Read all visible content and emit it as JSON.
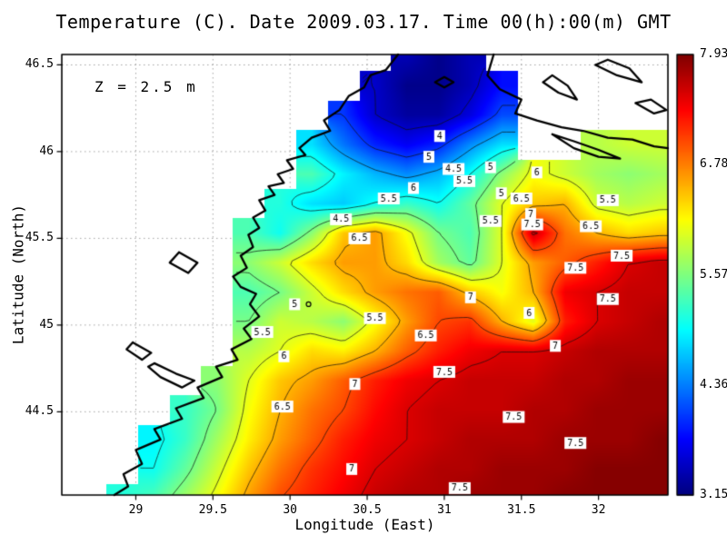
{
  "title": "Temperature (C). Date 2009.03.17. Time 00(h):00(m) GMT",
  "annotation": "Z = 2.5 m",
  "axes": {
    "x_label": "Longitude (East)",
    "y_label": "Latitude (North)",
    "x_ticks": [
      "29",
      "29.5",
      "30",
      "30.5",
      "31",
      "31.5",
      "32"
    ],
    "y_ticks": [
      "44.5",
      "45",
      "45.5",
      "46",
      "46.5"
    ],
    "xlim": [
      28.52,
      32.45
    ],
    "ylim": [
      44.02,
      46.56
    ]
  },
  "colorbar": {
    "min": 3.15,
    "max": 7.93,
    "tick_labels": [
      "7.93",
      "6.78",
      "5.57",
      "4.36",
      "3.15"
    ],
    "colormap": "jet",
    "top_color": "#800000",
    "bottom_color": "#000080"
  },
  "chart_data": {
    "type": "heatmap",
    "title": "Temperature (C). Date 2009.03.17. Time 00(h):00(m) GMT",
    "units": "C",
    "depth_annotation": "Z = 2.5 m",
    "xlabel": "Longitude (East)",
    "ylabel": "Latitude (North)",
    "grid": {
      "lon_min": 28.5,
      "lon_max": 32.4,
      "lat_min": 44.0,
      "lat_max": 46.55,
      "ncols": 20,
      "nrows": 16,
      "values_north_to_south": [
        [
          null,
          null,
          null,
          null,
          null,
          null,
          null,
          null,
          null,
          null,
          null,
          3.4,
          3.2,
          3.4,
          null,
          null,
          null,
          null,
          null,
          null
        ],
        [
          null,
          null,
          null,
          null,
          null,
          null,
          null,
          null,
          null,
          null,
          3.5,
          3.2,
          3.2,
          3.4,
          3.8,
          null,
          null,
          null,
          null,
          null
        ],
        [
          null,
          null,
          null,
          null,
          null,
          null,
          null,
          null,
          null,
          4.0,
          3.5,
          3.3,
          3.3,
          3.6,
          4.1,
          null,
          null,
          null,
          null,
          null
        ],
        [
          null,
          null,
          null,
          null,
          null,
          null,
          null,
          null,
          4.8,
          4.3,
          3.9,
          3.7,
          3.9,
          4.4,
          4.8,
          null,
          null,
          5.8,
          5.9,
          5.9
        ],
        [
          null,
          null,
          null,
          null,
          null,
          null,
          null,
          null,
          5.3,
          4.9,
          4.6,
          4.4,
          4.6,
          5.0,
          5.6,
          6.1,
          5.9,
          5.7,
          5.6,
          5.7
        ],
        [
          null,
          null,
          null,
          null,
          null,
          null,
          null,
          5.1,
          4.8,
          4.7,
          5.0,
          5.2,
          5.0,
          5.4,
          6.0,
          6.4,
          6.5,
          5.9,
          5.8,
          5.9
        ],
        [
          null,
          null,
          null,
          null,
          null,
          null,
          5.3,
          5.0,
          5.6,
          6.4,
          6.6,
          6.1,
          5.5,
          5.3,
          6.0,
          7.6,
          6.8,
          6.5,
          6.3,
          6.4
        ],
        [
          null,
          null,
          null,
          null,
          null,
          null,
          5.6,
          5.9,
          6.3,
          6.6,
          6.6,
          6.3,
          5.7,
          5.4,
          6.0,
          6.6,
          6.9,
          7.2,
          7.5,
          7.6
        ],
        [
          null,
          null,
          null,
          null,
          null,
          null,
          5.3,
          5.5,
          5.9,
          6.3,
          6.6,
          6.8,
          6.9,
          6.4,
          6.1,
          6.5,
          7.4,
          7.5,
          7.6,
          7.6
        ],
        [
          null,
          null,
          null,
          null,
          null,
          null,
          5.5,
          5.9,
          5.8,
          5.6,
          6.1,
          6.6,
          7.0,
          7.1,
          6.5,
          6.0,
          7.2,
          7.5,
          7.6,
          7.7
        ],
        [
          null,
          null,
          null,
          null,
          null,
          null,
          5.8,
          6.0,
          6.3,
          6.2,
          6.5,
          6.9,
          7.2,
          7.4,
          7.5,
          7.5,
          7.6,
          7.7,
          7.7,
          7.7
        ],
        [
          null,
          null,
          null,
          null,
          null,
          5.6,
          6.0,
          6.4,
          6.6,
          6.9,
          7.2,
          7.4,
          7.5,
          7.6,
          7.6,
          7.6,
          7.7,
          7.7,
          7.8,
          7.8
        ],
        [
          null,
          null,
          null,
          null,
          5.2,
          5.5,
          6.1,
          6.5,
          6.8,
          7.0,
          7.3,
          7.5,
          7.6,
          7.6,
          7.6,
          7.7,
          7.7,
          7.8,
          7.8,
          7.8
        ],
        [
          null,
          null,
          null,
          4.9,
          5.2,
          5.7,
          6.2,
          6.6,
          6.9,
          7.2,
          7.4,
          7.5,
          7.6,
          7.7,
          7.7,
          7.7,
          7.8,
          7.8,
          7.8,
          7.9
        ],
        [
          null,
          null,
          null,
          5.0,
          5.4,
          5.9,
          6.4,
          6.8,
          7.1,
          7.3,
          7.5,
          7.6,
          7.7,
          7.7,
          7.8,
          7.8,
          7.8,
          7.9,
          7.9,
          7.9
        ],
        [
          null,
          null,
          5.1,
          5.3,
          5.7,
          6.1,
          6.6,
          7.0,
          7.2,
          7.4,
          7.6,
          7.7,
          7.7,
          7.8,
          7.8,
          7.8,
          7.9,
          7.9,
          7.9,
          7.9
        ]
      ]
    },
    "contour_levels": [
      3.5,
      4,
      4.5,
      5,
      5.5,
      6,
      6.5,
      7,
      7.5
    ],
    "contour_labels": [
      {
        "v": "4",
        "lon": 30.97,
        "lat": 46.09
      },
      {
        "v": "5",
        "lon": 30.9,
        "lat": 45.97
      },
      {
        "v": "4.5",
        "lon": 31.06,
        "lat": 45.9
      },
      {
        "v": "5.5",
        "lon": 31.13,
        "lat": 45.83
      },
      {
        "v": "6",
        "lon": 30.8,
        "lat": 45.79
      },
      {
        "v": "5.5",
        "lon": 30.64,
        "lat": 45.73
      },
      {
        "v": "5",
        "lon": 31.3,
        "lat": 45.91
      },
      {
        "v": "6",
        "lon": 31.6,
        "lat": 45.88
      },
      {
        "v": "5",
        "lon": 31.37,
        "lat": 45.76
      },
      {
        "v": "5.5",
        "lon": 32.06,
        "lat": 45.72
      },
      {
        "v": "5.5",
        "lon": 31.3,
        "lat": 45.6
      },
      {
        "v": "6.5",
        "lon": 31.5,
        "lat": 45.73
      },
      {
        "v": "7",
        "lon": 31.56,
        "lat": 45.64
      },
      {
        "v": "7.5",
        "lon": 31.57,
        "lat": 45.58
      },
      {
        "v": "6.5",
        "lon": 31.95,
        "lat": 45.57
      },
      {
        "v": "4.5",
        "lon": 30.33,
        "lat": 45.61
      },
      {
        "v": "6.5",
        "lon": 30.45,
        "lat": 45.5
      },
      {
        "v": "5",
        "lon": 30.03,
        "lat": 45.12
      },
      {
        "v": "5.5",
        "lon": 29.82,
        "lat": 44.96
      },
      {
        "v": "6",
        "lon": 29.96,
        "lat": 44.82
      },
      {
        "v": "5.5",
        "lon": 30.55,
        "lat": 45.04
      },
      {
        "v": "6.5",
        "lon": 30.88,
        "lat": 44.94
      },
      {
        "v": "7",
        "lon": 31.17,
        "lat": 45.16
      },
      {
        "v": "6",
        "lon": 31.55,
        "lat": 45.07
      },
      {
        "v": "7.5",
        "lon": 31.85,
        "lat": 45.33
      },
      {
        "v": "7.5",
        "lon": 32.06,
        "lat": 45.15
      },
      {
        "v": "7",
        "lon": 31.72,
        "lat": 44.88
      },
      {
        "v": "6.5",
        "lon": 29.95,
        "lat": 44.53
      },
      {
        "v": "7",
        "lon": 30.42,
        "lat": 44.66
      },
      {
        "v": "7",
        "lon": 30.4,
        "lat": 44.17
      },
      {
        "v": "7.5",
        "lon": 31.0,
        "lat": 44.73
      },
      {
        "v": "7.5",
        "lon": 31.45,
        "lat": 44.47
      },
      {
        "v": "7.5",
        "lon": 31.85,
        "lat": 44.32
      },
      {
        "v": "7.5",
        "lon": 31.1,
        "lat": 44.06
      },
      {
        "v": "7.5",
        "lon": 32.15,
        "lat": 45.4
      }
    ],
    "coastline": [
      [
        [
          30.7,
          46.56
        ],
        [
          30.62,
          46.47
        ],
        [
          30.52,
          46.44
        ],
        [
          30.48,
          46.37
        ],
        [
          30.38,
          46.32
        ],
        [
          30.32,
          46.24
        ],
        [
          30.22,
          46.18
        ],
        [
          30.26,
          46.12
        ],
        [
          30.14,
          46.08
        ],
        [
          30.06,
          46.02
        ],
        [
          30.1,
          45.98
        ],
        [
          29.98,
          45.95
        ],
        [
          30.02,
          45.9
        ],
        [
          29.92,
          45.87
        ],
        [
          29.96,
          45.82
        ],
        [
          29.86,
          45.8
        ],
        [
          29.9,
          45.75
        ],
        [
          29.8,
          45.72
        ],
        [
          29.84,
          45.66
        ],
        [
          29.76,
          45.62
        ],
        [
          29.8,
          45.56
        ],
        [
          29.73,
          45.52
        ],
        [
          29.76,
          45.45
        ],
        [
          29.68,
          45.4
        ],
        [
          29.72,
          45.33
        ],
        [
          29.63,
          45.28
        ],
        [
          29.68,
          45.22
        ],
        [
          29.78,
          45.18
        ],
        [
          29.74,
          45.12
        ],
        [
          29.8,
          45.05
        ],
        [
          29.7,
          44.98
        ],
        [
          29.75,
          44.92
        ],
        [
          29.62,
          44.86
        ],
        [
          29.66,
          44.8
        ],
        [
          29.52,
          44.76
        ],
        [
          29.56,
          44.7
        ],
        [
          29.4,
          44.64
        ],
        [
          29.44,
          44.58
        ],
        [
          29.26,
          44.52
        ],
        [
          29.3,
          44.46
        ],
        [
          29.12,
          44.4
        ],
        [
          29.16,
          44.34
        ],
        [
          29.0,
          44.28
        ],
        [
          29.04,
          44.2
        ],
        [
          28.92,
          44.14
        ],
        [
          28.95,
          44.07
        ],
        [
          28.86,
          44.02
        ]
      ],
      [
        [
          31.32,
          46.56
        ],
        [
          31.28,
          46.44
        ],
        [
          31.36,
          46.36
        ],
        [
          31.5,
          46.3
        ],
        [
          31.46,
          46.22
        ],
        [
          31.6,
          46.18
        ],
        [
          31.76,
          46.14
        ],
        [
          31.9,
          46.12
        ],
        [
          32.06,
          46.08
        ],
        [
          32.22,
          46.07
        ],
        [
          32.36,
          46.03
        ],
        [
          32.45,
          46.02
        ]
      ],
      [
        [
          31.7,
          46.1
        ],
        [
          31.84,
          46.02
        ],
        [
          32.0,
          45.97
        ],
        [
          32.14,
          45.96
        ],
        [
          32.0,
          46.01
        ],
        [
          31.84,
          46.06
        ],
        [
          31.7,
          46.1
        ]
      ],
      [
        [
          31.64,
          46.4
        ],
        [
          31.74,
          46.34
        ],
        [
          31.86,
          46.3
        ],
        [
          31.8,
          46.38
        ],
        [
          31.7,
          46.44
        ],
        [
          31.64,
          46.4
        ]
      ],
      [
        [
          31.98,
          46.5
        ],
        [
          32.12,
          46.44
        ],
        [
          32.28,
          46.4
        ],
        [
          32.2,
          46.48
        ],
        [
          32.06,
          46.53
        ],
        [
          31.98,
          46.5
        ]
      ],
      [
        [
          32.24,
          46.28
        ],
        [
          32.36,
          46.22
        ],
        [
          32.44,
          46.24
        ],
        [
          32.34,
          46.3
        ],
        [
          32.24,
          46.28
        ]
      ],
      [
        [
          30.94,
          46.4
        ],
        [
          31.0,
          46.37
        ],
        [
          31.06,
          46.4
        ],
        [
          31.0,
          46.43
        ],
        [
          30.94,
          46.4
        ]
      ],
      [
        [
          29.12,
          44.78
        ],
        [
          29.26,
          44.72
        ],
        [
          29.38,
          44.68
        ],
        [
          29.3,
          44.64
        ],
        [
          29.16,
          44.7
        ],
        [
          29.08,
          44.76
        ],
        [
          29.12,
          44.78
        ]
      ],
      [
        [
          28.98,
          44.9
        ],
        [
          29.1,
          44.84
        ],
        [
          29.04,
          44.8
        ],
        [
          28.94,
          44.86
        ],
        [
          28.98,
          44.9
        ]
      ],
      [
        [
          29.28,
          45.42
        ],
        [
          29.4,
          45.36
        ],
        [
          29.34,
          45.3
        ],
        [
          29.22,
          45.36
        ],
        [
          29.28,
          45.42
        ]
      ]
    ],
    "islet": {
      "lon": 30.12,
      "lat": 45.12
    }
  }
}
